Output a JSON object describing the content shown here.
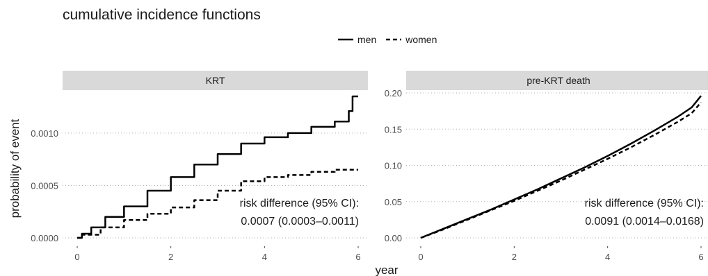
{
  "title": "cumulative incidence functions",
  "legend": [
    {
      "label": "men",
      "style": "solid"
    },
    {
      "label": "women",
      "style": "dashed"
    }
  ],
  "xlabel": "year",
  "ylabel": "probability of event",
  "colors": {
    "strip": "#d9d9d9",
    "grid": "#b0b0b0",
    "line": "#000000",
    "axis_text": "#4d4d4d"
  },
  "chart_data": [
    {
      "type": "line",
      "panel": "KRT",
      "xlim": [
        0,
        6
      ],
      "ylim": [
        0,
        0.00135
      ],
      "xticks": [
        0,
        2,
        4,
        6
      ],
      "yticks": [
        0.0,
        0.0005,
        0.001
      ],
      "ytick_labels": [
        "0.0000",
        "0.0005",
        "0.0010"
      ],
      "grid": true,
      "step": true,
      "series": [
        {
          "name": "men",
          "style": "solid",
          "x": [
            0,
            0.1,
            0.3,
            0.6,
            1.0,
            1.5,
            2.0,
            2.5,
            3.0,
            3.5,
            4.0,
            4.5,
            5.0,
            5.5,
            5.8,
            5.88,
            6.0
          ],
          "y": [
            0,
            4e-05,
            0.0001,
            0.0002,
            0.0003,
            0.00045,
            0.00058,
            0.0007,
            0.0008,
            0.0009,
            0.00096,
            0.001,
            0.00106,
            0.00111,
            0.00121,
            0.00135,
            0.00135
          ]
        },
        {
          "name": "women",
          "style": "dashed",
          "x": [
            0,
            0.1,
            0.5,
            1.0,
            1.5,
            2.0,
            2.5,
            3.0,
            3.5,
            4.0,
            4.5,
            5.0,
            5.5,
            6.0
          ],
          "y": [
            0,
            3e-05,
            0.0001,
            0.00017,
            0.00023,
            0.00029,
            0.00036,
            0.00045,
            0.00054,
            0.00058,
            0.0006,
            0.00063,
            0.00065,
            0.00065
          ]
        }
      ],
      "annotation": [
        "risk difference (95% CI):",
        "0.0007 (0.0003–0.0011)"
      ]
    },
    {
      "type": "line",
      "panel": "pre-KRT death",
      "xlim": [
        0,
        6
      ],
      "ylim": [
        0,
        0.2
      ],
      "xticks": [
        0,
        2,
        4,
        6
      ],
      "yticks": [
        0.0,
        0.05,
        0.1,
        0.15,
        0.2
      ],
      "ytick_labels": [
        "0.00",
        "0.05",
        "0.10",
        "0.15",
        "0.20"
      ],
      "grid": true,
      "step": false,
      "series": [
        {
          "name": "men",
          "style": "solid",
          "x": [
            0,
            0.5,
            1,
            1.5,
            2,
            2.5,
            3,
            3.5,
            4,
            4.5,
            5,
            5.5,
            5.8,
            6.0
          ],
          "y": [
            0,
            0.013,
            0.026,
            0.039,
            0.053,
            0.067,
            0.082,
            0.097,
            0.113,
            0.13,
            0.148,
            0.167,
            0.18,
            0.196
          ]
        },
        {
          "name": "women",
          "style": "dashed",
          "x": [
            0,
            0.5,
            1,
            1.5,
            2,
            2.5,
            3,
            3.5,
            4,
            4.5,
            5,
            5.5,
            5.8,
            6.0
          ],
          "y": [
            0,
            0.012,
            0.025,
            0.038,
            0.051,
            0.065,
            0.079,
            0.094,
            0.109,
            0.125,
            0.142,
            0.16,
            0.172,
            0.187
          ]
        }
      ],
      "annotation": [
        "risk difference (95% CI):",
        "0.0091 (0.0014–0.0168)"
      ]
    }
  ]
}
